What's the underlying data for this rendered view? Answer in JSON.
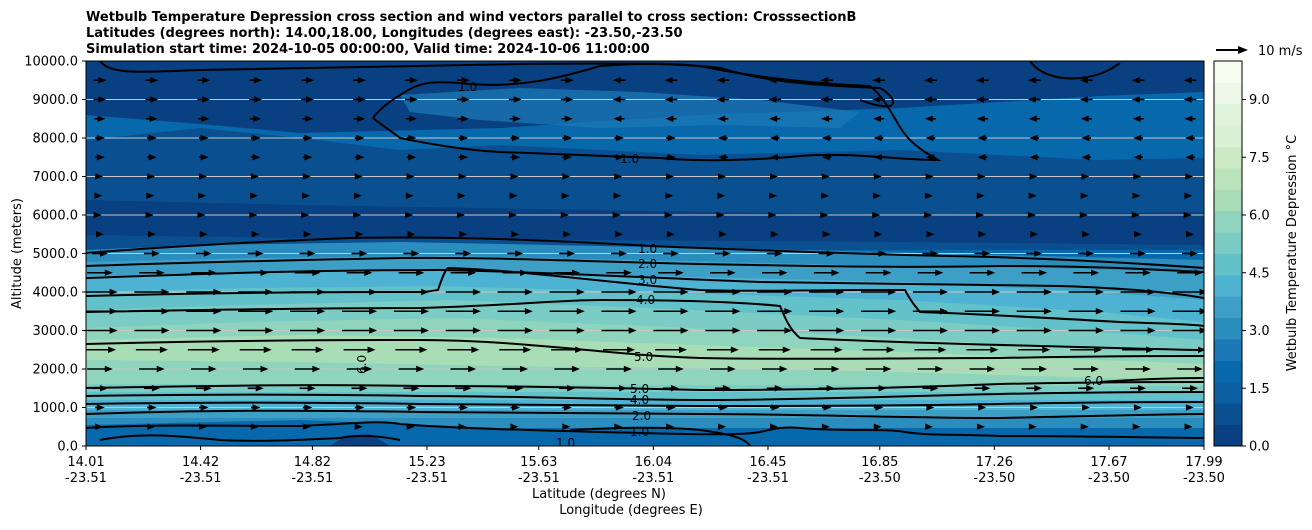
{
  "chart_data": {
    "type": "contour",
    "title_lines": [
      "Wetbulb Temperature Depression cross section and wind vectors parallel to cross section: CrosssectionB",
      "Latitudes (degrees north): 14.00,18.00, Longitudes (degrees east): -23.50,-23.50",
      "Simulation start time: 2024-10-05 00:00:00, Valid time: 2024-10-06 11:00:00"
    ],
    "xlabel_lat": "Latitude (degrees N)",
    "xlabel_lon": "Longitude (degrees E)",
    "ylabel": "Altitude (meters)",
    "ylim": [
      0,
      10000
    ],
    "y_ticks": [
      "0.0",
      "1000.0",
      "2000.0",
      "3000.0",
      "4000.0",
      "5000.0",
      "6000.0",
      "7000.0",
      "8000.0",
      "9000.0",
      "10000.0"
    ],
    "y_tick_values": [
      0,
      1000,
      2000,
      3000,
      4000,
      5000,
      6000,
      7000,
      8000,
      9000,
      10000
    ],
    "x_ticks": [
      {
        "lat": "14.01",
        "lon": "-23.51",
        "frac": 0.0
      },
      {
        "lat": "14.42",
        "lon": "-23.51",
        "frac": 0.1025
      },
      {
        "lat": "14.82",
        "lon": "-23.51",
        "frac": 0.2025
      },
      {
        "lat": "15.23",
        "lon": "-23.51",
        "frac": 0.305
      },
      {
        "lat": "15.63",
        "lon": "-23.51",
        "frac": 0.405
      },
      {
        "lat": "16.04",
        "lon": "-23.51",
        "frac": 0.5075
      },
      {
        "lat": "16.45",
        "lon": "-23.51",
        "frac": 0.61
      },
      {
        "lat": "16.85",
        "lon": "-23.50",
        "frac": 0.71
      },
      {
        "lat": "17.26",
        "lon": "-23.50",
        "frac": 0.8125
      },
      {
        "lat": "17.67",
        "lon": "-23.50",
        "frac": 0.915
      },
      {
        "lat": "17.99",
        "lon": "-23.50",
        "frac": 1.0
      }
    ],
    "grid": "horizontal",
    "colorbar": {
      "label": "Wetbulb Temperature Depression °C",
      "range": [
        0,
        10
      ],
      "ticks": [
        "0.0",
        "1.5",
        "3.0",
        "4.5",
        "6.0",
        "7.5",
        "9.0"
      ],
      "tick_values": [
        0,
        1.5,
        3,
        4.5,
        6,
        7.5,
        9
      ],
      "colors": [
        "#084081",
        "#0a4f90",
        "#0b5ea0",
        "#0868ac",
        "#1b78b5",
        "#2b8cbe",
        "#3d9fc6",
        "#4eb3d3",
        "#63c1c9",
        "#7bccc4",
        "#8fd4bd",
        "#a8ddb5",
        "#bbe4bd",
        "#ccebc5",
        "#daf0d5",
        "#e0f3db",
        "#eef8ea",
        "#f7fcf0"
      ]
    },
    "contour_levels": [
      "1.0",
      "2.0",
      "3.0",
      "4.0",
      "5.0",
      "6.0"
    ],
    "quiver_key": {
      "label": "10 m/s",
      "speed": 10
    },
    "wind_rows": [
      {
        "alt": 500,
        "speed": 2
      },
      {
        "alt": 1000,
        "speed": 3
      },
      {
        "alt": 1500,
        "speed": 5
      },
      {
        "alt": 2000,
        "speed": 8
      },
      {
        "alt": 2500,
        "speed": 10
      },
      {
        "alt": 3000,
        "speed": 11
      },
      {
        "alt": 3500,
        "speed": 11
      },
      {
        "alt": 4000,
        "speed": 11
      },
      {
        "alt": 4500,
        "speed": 8
      },
      {
        "alt": 5000,
        "speed": 5
      },
      {
        "alt": 5500,
        "speed": 2.5
      },
      {
        "alt": 6000,
        "speed": 1
      },
      {
        "alt": 6500,
        "speed": 1.5
      },
      {
        "alt": 7000,
        "speed": 2
      },
      {
        "alt": 7500,
        "speed": 3
      },
      {
        "alt": 8000,
        "speed": 3
      },
      {
        "alt": 8500,
        "speed": 3.5
      },
      {
        "alt": 9000,
        "speed": 4
      },
      {
        "alt": 9500,
        "speed": 4
      }
    ]
  }
}
